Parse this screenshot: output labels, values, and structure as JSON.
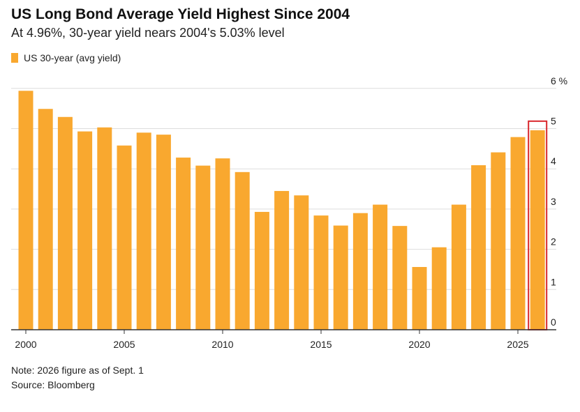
{
  "header": {
    "title": "US Long Bond Average Yield Highest Since 2004",
    "subtitle": "At 4.96%, 30-year yield nears 2004's 5.03% level"
  },
  "footer": {
    "note": "Note: 2026 figure as of Sept. 1",
    "source": "Source: Bloomberg"
  },
  "colors": {
    "bar": "#f9a82f",
    "highlight_box": "#d9262b",
    "grid": "#dddddd",
    "axis": "#333333"
  },
  "chart_data": {
    "type": "bar",
    "title": "US Long Bond Average Yield Highest Since 2004",
    "subtitle": "At 4.96%, 30-year yield nears 2004's 5.03% level",
    "series": [
      {
        "name": "US 30-year (avg yield)",
        "x": [
          2000,
          2001,
          2002,
          2003,
          2004,
          2005,
          2006,
          2007,
          2008,
          2009,
          2010,
          2011,
          2012,
          2013,
          2014,
          2015,
          2016,
          2017,
          2018,
          2019,
          2020,
          2021,
          2022,
          2023,
          2024,
          2025,
          2026
        ],
        "values": [
          5.94,
          5.49,
          5.29,
          4.93,
          5.03,
          4.58,
          4.9,
          4.85,
          4.28,
          4.08,
          4.26,
          3.92,
          2.93,
          3.45,
          3.34,
          2.84,
          2.59,
          2.9,
          3.11,
          2.58,
          1.56,
          2.05,
          3.11,
          4.09,
          4.41,
          4.79,
          4.96
        ]
      }
    ],
    "x_ticks": [
      "2000",
      "2005",
      "2010",
      "2015",
      "2020",
      "2025"
    ],
    "y_ticks": [
      "0",
      "1",
      "2",
      "3",
      "4",
      "5",
      "6 %"
    ],
    "ylim": [
      0,
      6
    ],
    "y_axis_side": "right",
    "grid": true,
    "legend_position": "top-left",
    "highlighted_x": 2026,
    "xlabel": "",
    "ylabel": ""
  }
}
